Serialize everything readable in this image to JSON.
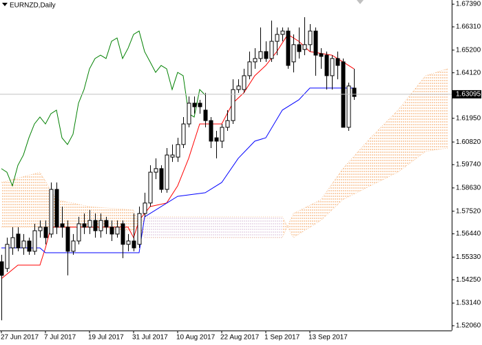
{
  "chart_data": {
    "type": "candlestick",
    "title": "EURNZD,Daily",
    "xlim": [
      -0.25,
      81.75
    ],
    "ylim": [
      1.5183,
      1.6759
    ],
    "xticks": [
      {
        "value": 0,
        "label": "27 Jun 2017"
      },
      {
        "value": 8,
        "label": "7 Jul 2017"
      },
      {
        "value": 16,
        "label": "19 Jul 2017"
      },
      {
        "value": 24,
        "label": "31 Jul 2017"
      },
      {
        "value": 32,
        "label": "10 Aug 2017"
      },
      {
        "value": 40,
        "label": "22 Aug 2017"
      },
      {
        "value": 48,
        "label": "1 Sep 2017"
      },
      {
        "value": 56,
        "label": "13 Sep 2017"
      }
    ],
    "yticks": [
      {
        "value": 1.6739,
        "label": "1.67390"
      },
      {
        "value": 1.6631,
        "label": "1.66310"
      },
      {
        "value": 1.652,
        "label": "1.65200"
      },
      {
        "value": 1.6412,
        "label": "1.64120"
      },
      {
        "value": 1.6195,
        "label": "1.61950"
      },
      {
        "value": 1.6082,
        "label": "1.60820"
      },
      {
        "value": 1.5974,
        "label": "1.59740"
      },
      {
        "value": 1.5863,
        "label": "1.58630"
      },
      {
        "value": 1.5752,
        "label": "1.57520"
      },
      {
        "value": 1.5644,
        "label": "1.56440"
      },
      {
        "value": 1.5533,
        "label": "1.55330"
      },
      {
        "value": 1.5425,
        "label": "1.54250"
      },
      {
        "value": 1.5314,
        "label": "1.53140"
      },
      {
        "value": 1.5206,
        "label": "1.52060"
      }
    ],
    "current_price": {
      "value": 1.63095,
      "label": "1.63095"
    },
    "up_color": "#ffffff",
    "down_color": "#000000",
    "open": [
      1.5511,
      1.5479,
      1.5577,
      1.5643,
      1.5577,
      1.561,
      1.5561,
      1.5659,
      1.5676,
      1.5643,
      1.5856,
      1.5692,
      1.5676,
      1.5561,
      1.561,
      1.5692,
      1.5676,
      1.5708,
      1.5659,
      1.5708,
      1.5676,
      1.5643,
      1.5692,
      1.5594,
      1.561,
      1.5594,
      1.5741,
      1.5791,
      1.5938,
      1.5955,
      1.5856,
      1.601,
      1.601,
      1.607,
      1.6168,
      1.6267,
      1.6267,
      1.6234,
      1.6184,
      1.6102,
      1.6086,
      1.6152,
      1.6184,
      1.6332,
      1.6332,
      1.6398,
      1.6464,
      1.648,
      1.6513,
      1.648,
      1.6562,
      1.6595,
      1.6611,
      1.6464,
      1.6546,
      1.6523,
      1.6546,
      1.6611,
      1.6503,
      1.6496,
      1.6398,
      1.648,
      1.6464,
      1.6152,
      1.6339
    ],
    "high": [
      1.5544,
      1.5626,
      1.5676,
      1.5676,
      1.5643,
      1.5626,
      1.5692,
      1.5708,
      1.5708,
      1.5889,
      1.5889,
      1.5774,
      1.5708,
      1.5643,
      1.5725,
      1.5741,
      1.5758,
      1.5741,
      1.5741,
      1.5725,
      1.5708,
      1.5708,
      1.5708,
      1.5643,
      1.5741,
      1.5774,
      1.584,
      1.5971,
      1.6004,
      1.5971,
      1.6053,
      1.607,
      1.6102,
      1.6201,
      1.6299,
      1.6299,
      1.6283,
      1.6316,
      1.6201,
      1.6135,
      1.6168,
      1.6234,
      1.6381,
      1.6381,
      1.6431,
      1.6513,
      1.6529,
      1.6628,
      1.6562,
      1.6661,
      1.6628,
      1.6628,
      1.6628,
      1.6595,
      1.6628,
      1.6677,
      1.6644,
      1.6628,
      1.6529,
      1.6513,
      1.6496,
      1.6513,
      1.648,
      1.6365,
      1.6431
    ],
    "low": [
      1.5232,
      1.5462,
      1.5544,
      1.5561,
      1.5544,
      1.5544,
      1.5544,
      1.5626,
      1.5594,
      1.5626,
      1.5643,
      1.5626,
      1.5446,
      1.5544,
      1.5594,
      1.5643,
      1.5643,
      1.5626,
      1.5626,
      1.5643,
      1.561,
      1.5626,
      1.5528,
      1.5561,
      1.5561,
      1.5577,
      1.5725,
      1.5774,
      1.5905,
      1.584,
      1.584,
      1.5987,
      1.5987,
      1.6053,
      1.6152,
      1.6217,
      1.6217,
      1.6152,
      1.6053,
      1.6004,
      1.6053,
      1.6135,
      1.6168,
      1.6316,
      1.6316,
      1.6381,
      1.6431,
      1.6464,
      1.6464,
      1.6464,
      1.6496,
      1.6562,
      1.6431,
      1.6414,
      1.648,
      1.6496,
      1.6513,
      1.6398,
      1.6431,
      1.6332,
      1.6332,
      1.6381,
      1.6152,
      1.6135,
      1.6283
    ],
    "close": [
      1.5446,
      1.5594,
      1.5626,
      1.5577,
      1.561,
      1.5561,
      1.5659,
      1.5676,
      1.5626,
      1.5856,
      1.5676,
      1.5676,
      1.5561,
      1.561,
      1.5692,
      1.5676,
      1.5708,
      1.5659,
      1.5708,
      1.5676,
      1.5643,
      1.5676,
      1.5594,
      1.561,
      1.5577,
      1.5741,
      1.5791,
      1.5938,
      1.5955,
      1.5856,
      1.602,
      1.602,
      1.607,
      1.6168,
      1.6267,
      1.625,
      1.625,
      1.6184,
      1.6086,
      1.6086,
      1.6152,
      1.6184,
      1.6332,
      1.6349,
      1.6398,
      1.6464,
      1.648,
      1.6513,
      1.648,
      1.6562,
      1.6595,
      1.6611,
      1.6447,
      1.6546,
      1.6513,
      1.6546,
      1.6611,
      1.6496,
      1.649,
      1.6398,
      1.648,
      1.6447,
      1.6152,
      1.6349,
      1.6299
    ],
    "lines": [
      {
        "color": "#ff0000",
        "x": [
          0,
          3,
          7,
          8,
          9,
          23,
          24,
          25,
          27,
          30,
          32,
          34,
          36,
          40,
          42,
          44,
          46,
          48,
          50,
          52,
          54,
          56,
          60,
          62,
          64
        ],
        "values": [
          1.543,
          1.5495,
          1.5495,
          1.5577,
          1.5676,
          1.5676,
          1.5626,
          1.5708,
          1.5774,
          1.5791,
          1.5873,
          1.6004,
          1.6168,
          1.6168,
          1.6267,
          1.6316,
          1.6398,
          1.6447,
          1.6513,
          1.6595,
          1.6562,
          1.6513,
          1.6496,
          1.6464,
          1.6431
        ]
      },
      {
        "color": "#0000ff",
        "x": [
          0,
          7,
          8,
          25,
          26,
          32,
          37,
          40,
          43,
          46,
          48,
          51,
          54,
          56,
          64
        ],
        "values": [
          1.5577,
          1.5577,
          1.5554,
          1.5554,
          1.5725,
          1.5823,
          1.584,
          1.5889,
          1.6004,
          1.6086,
          1.6102,
          1.6234,
          1.6283,
          1.6339,
          1.6339
        ]
      },
      {
        "color": "#008000",
        "x": [
          0,
          1,
          2,
          3,
          4,
          5,
          6,
          7,
          8,
          9,
          10,
          11,
          12,
          13,
          14,
          15,
          16,
          17,
          18,
          19,
          20,
          21,
          22,
          23,
          24,
          25,
          26,
          27,
          28,
          29,
          30,
          31,
          32,
          33,
          34,
          35,
          36,
          37
        ],
        "values": [
          1.5955,
          1.5938,
          1.5873,
          1.5971,
          1.602,
          1.6102,
          1.6168,
          1.6201,
          1.6168,
          1.6217,
          1.6234,
          1.6102,
          1.607,
          1.6119,
          1.6267,
          1.6332,
          1.6431,
          1.648,
          1.6496,
          1.648,
          1.6562,
          1.6578,
          1.648,
          1.6529,
          1.6595,
          1.6611,
          1.6513,
          1.6464,
          1.6414,
          1.6447,
          1.6431,
          1.6332,
          1.6414,
          1.6398,
          1.6217,
          1.6201,
          1.6332,
          1.6306
        ]
      }
    ],
    "cloud": {
      "up_color": "#f4a460",
      "down_color": "#d8bfd8",
      "x": [
        0,
        7,
        10,
        16,
        24,
        26,
        51,
        53,
        58,
        62,
        67,
        72,
        77,
        81
      ],
      "span_a": [
        1.5889,
        1.5938,
        1.5807,
        1.5774,
        1.5758,
        1.5626,
        1.5626,
        1.5741,
        1.5807,
        1.5955,
        1.6102,
        1.6234,
        1.6398,
        1.6431
      ],
      "span_b": [
        1.5676,
        1.5676,
        1.5676,
        1.5676,
        1.5659,
        1.5725,
        1.5725,
        1.5626,
        1.5708,
        1.5807,
        1.5873,
        1.5938,
        1.6037,
        1.6053
      ]
    }
  }
}
